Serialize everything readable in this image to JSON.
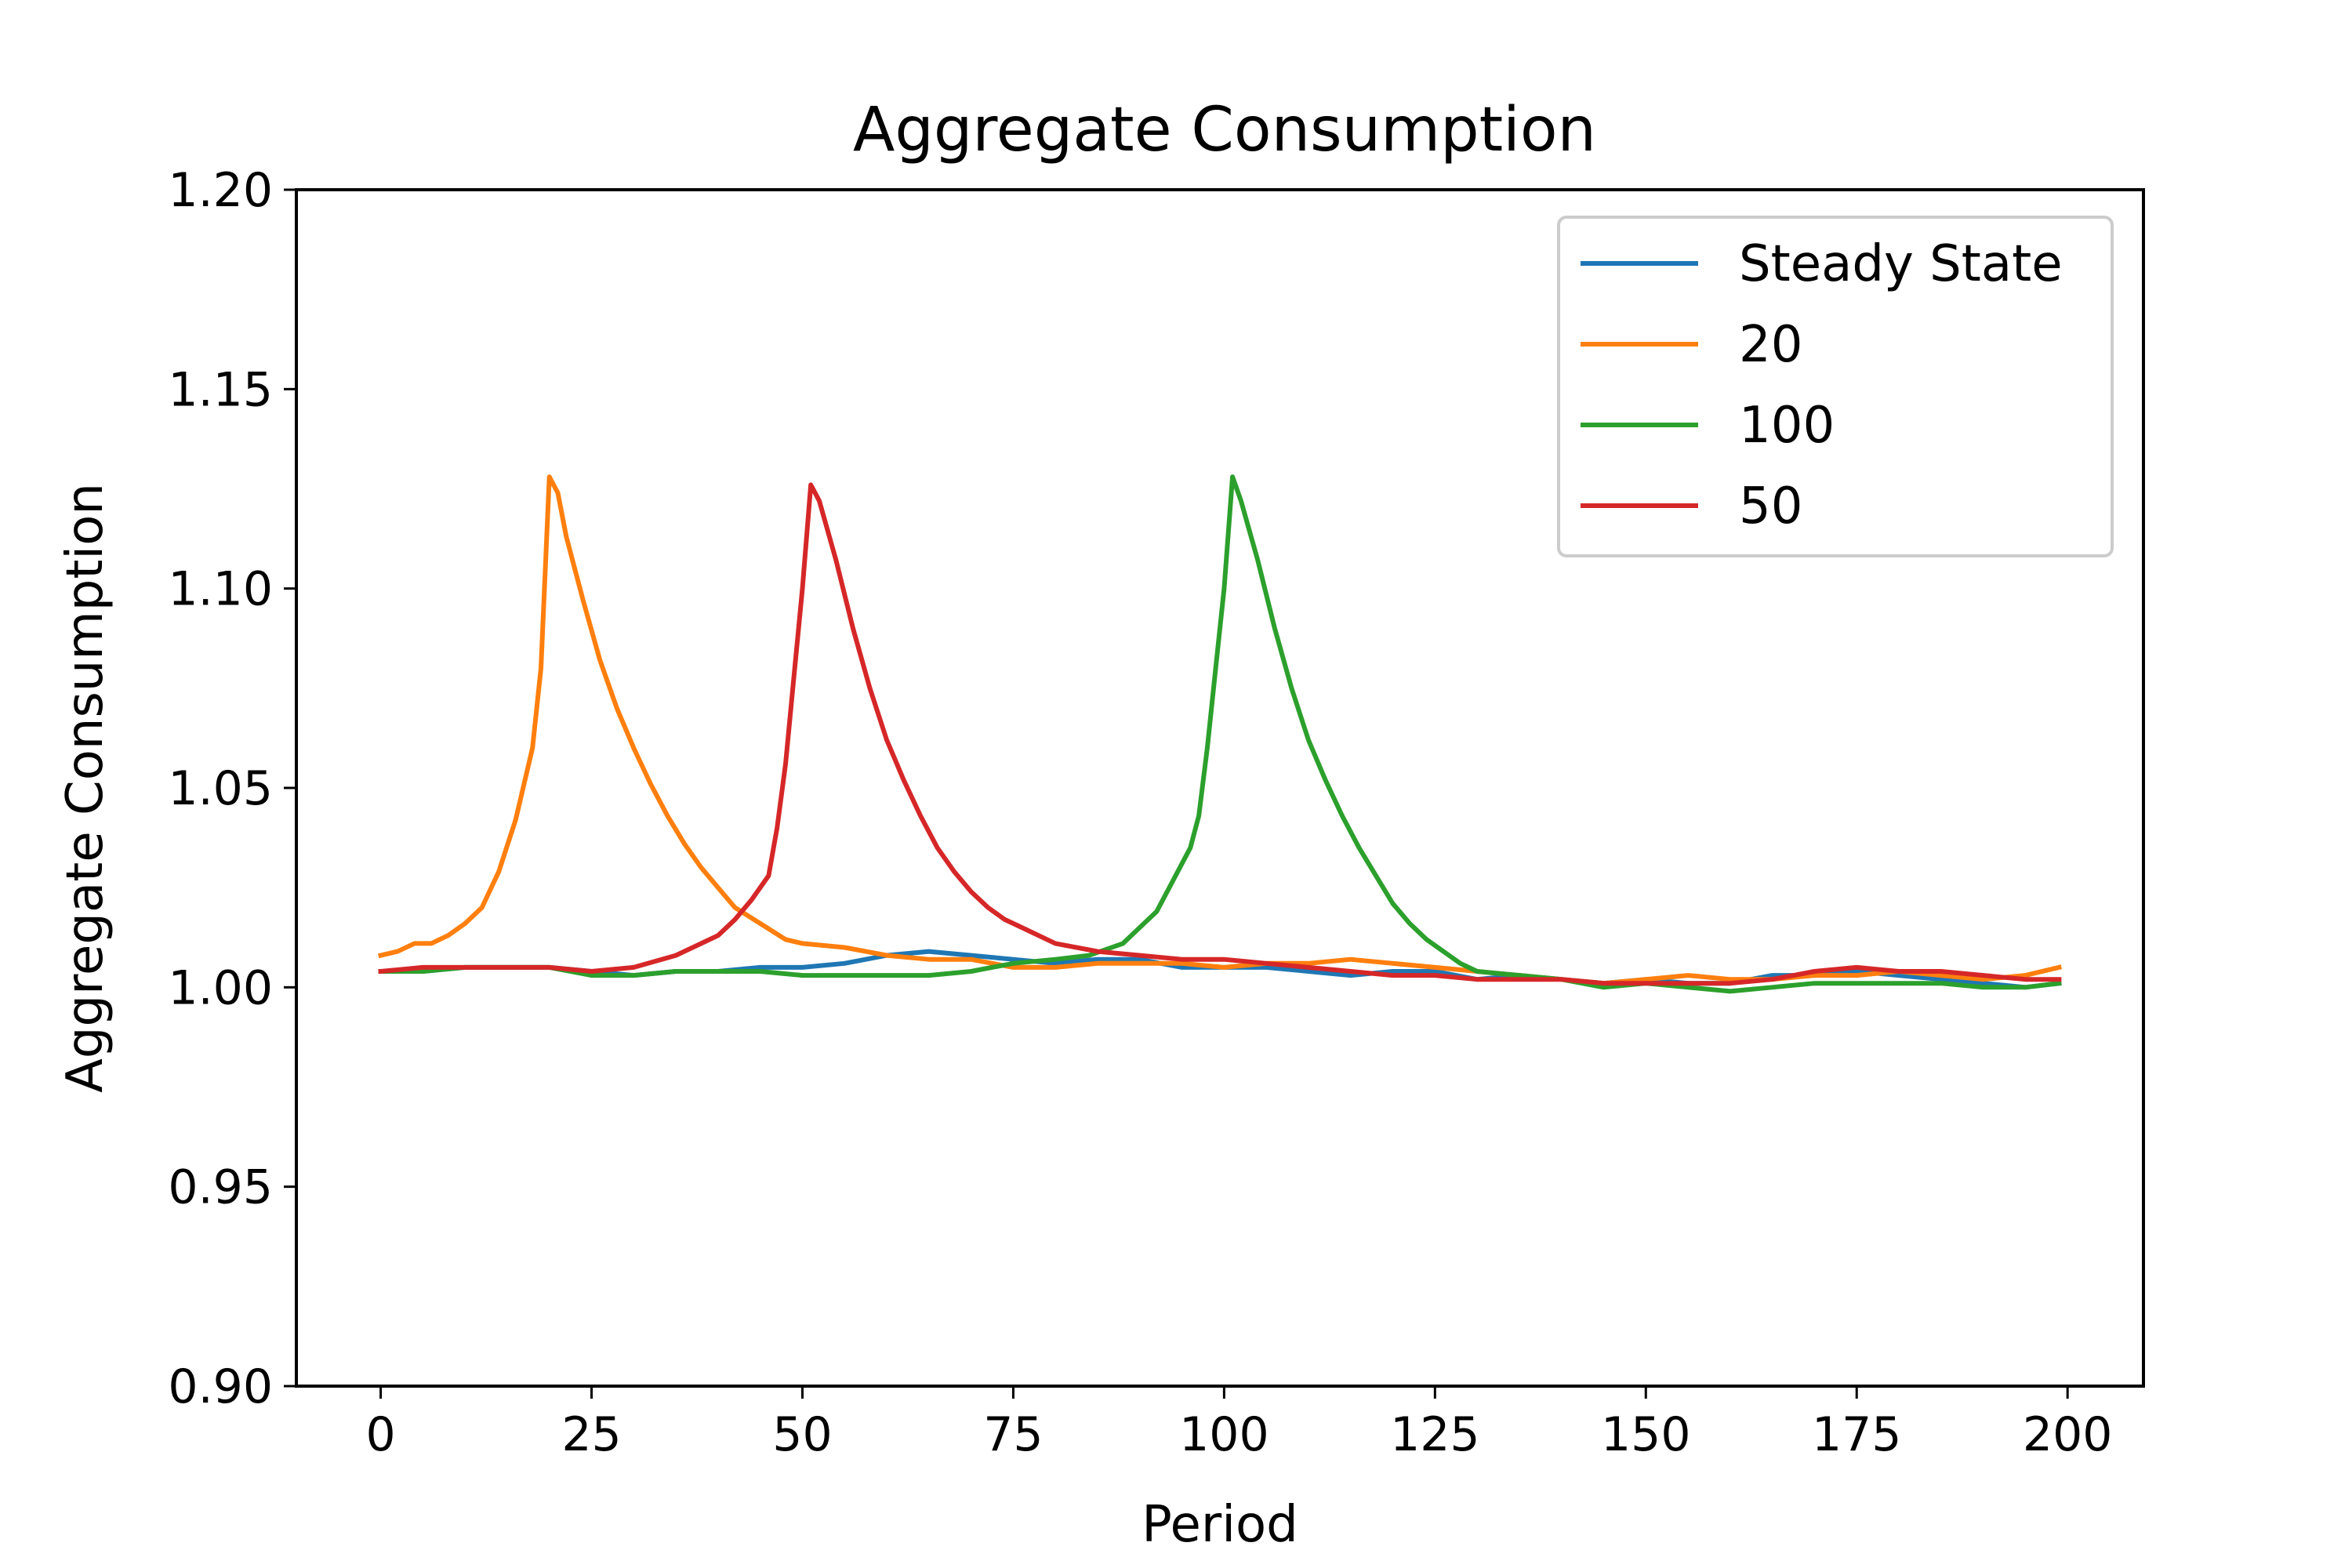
{
  "chart_data": {
    "type": "line",
    "title": "Aggregate Consumption",
    "xlabel": "Period",
    "ylabel": "Aggregate Consumption",
    "xlim": [
      -10,
      209
    ],
    "ylim": [
      0.9,
      1.2
    ],
    "xticks": [
      0,
      25,
      50,
      75,
      100,
      125,
      150,
      175,
      200
    ],
    "yticks": [
      0.9,
      0.95,
      1.0,
      1.05,
      1.1,
      1.15,
      1.2
    ],
    "ytick_labels": [
      "0.90",
      "0.95",
      "1.00",
      "1.05",
      "1.10",
      "1.15",
      "1.20"
    ],
    "legend_position": "top-right",
    "grid": false,
    "series": [
      {
        "name": "Steady State",
        "color": "#1f77b4",
        "x": [
          0,
          5,
          10,
          15,
          20,
          25,
          30,
          35,
          40,
          45,
          50,
          55,
          60,
          65,
          70,
          75,
          80,
          85,
          90,
          95,
          100,
          105,
          110,
          115,
          120,
          125,
          130,
          135,
          140,
          145,
          150,
          155,
          160,
          165,
          170,
          175,
          180,
          185,
          190,
          195,
          199
        ],
        "y": [
          1.004,
          1.004,
          1.005,
          1.005,
          1.005,
          1.004,
          1.003,
          1.004,
          1.004,
          1.005,
          1.005,
          1.006,
          1.008,
          1.009,
          1.008,
          1.007,
          1.006,
          1.007,
          1.007,
          1.005,
          1.005,
          1.005,
          1.004,
          1.003,
          1.004,
          1.004,
          1.002,
          1.003,
          1.002,
          1.001,
          1.002,
          1.001,
          1.001,
          1.003,
          1.003,
          1.004,
          1.003,
          1.002,
          1.001,
          1.0,
          1.001
        ]
      },
      {
        "name": "20",
        "color": "#ff7f0e",
        "x": [
          0,
          2,
          4,
          6,
          8,
          10,
          12,
          14,
          16,
          18,
          19,
          20,
          21,
          22,
          24,
          26,
          28,
          30,
          32,
          34,
          36,
          38,
          40,
          42,
          45,
          48,
          50,
          55,
          60,
          65,
          70,
          75,
          80,
          85,
          90,
          95,
          100,
          105,
          110,
          115,
          120,
          125,
          130,
          135,
          140,
          145,
          150,
          155,
          160,
          165,
          170,
          175,
          180,
          185,
          190,
          195,
          199
        ],
        "y": [
          1.008,
          1.009,
          1.011,
          1.011,
          1.013,
          1.016,
          1.02,
          1.029,
          1.042,
          1.06,
          1.08,
          1.128,
          1.124,
          1.113,
          1.097,
          1.082,
          1.07,
          1.06,
          1.051,
          1.043,
          1.036,
          1.03,
          1.025,
          1.02,
          1.016,
          1.012,
          1.011,
          1.01,
          1.008,
          1.007,
          1.007,
          1.005,
          1.005,
          1.006,
          1.006,
          1.006,
          1.005,
          1.006,
          1.006,
          1.007,
          1.006,
          1.005,
          1.004,
          1.003,
          1.002,
          1.001,
          1.002,
          1.003,
          1.002,
          1.002,
          1.003,
          1.003,
          1.004,
          1.003,
          1.002,
          1.003,
          1.005
        ]
      },
      {
        "name": "100",
        "color": "#2ca02c",
        "x": [
          0,
          5,
          10,
          15,
          20,
          25,
          30,
          35,
          40,
          45,
          50,
          55,
          60,
          65,
          70,
          75,
          80,
          84,
          88,
          90,
          92,
          94,
          96,
          97,
          98,
          99,
          100,
          101,
          102,
          104,
          106,
          108,
          110,
          112,
          114,
          116,
          118,
          120,
          122,
          124,
          126,
          128,
          130,
          135,
          140,
          145,
          150,
          155,
          160,
          165,
          170,
          175,
          180,
          185,
          190,
          195,
          199
        ],
        "y": [
          1.004,
          1.004,
          1.005,
          1.005,
          1.005,
          1.003,
          1.003,
          1.004,
          1.004,
          1.004,
          1.003,
          1.003,
          1.003,
          1.003,
          1.004,
          1.006,
          1.007,
          1.008,
          1.011,
          1.015,
          1.019,
          1.027,
          1.035,
          1.043,
          1.06,
          1.08,
          1.1,
          1.128,
          1.122,
          1.107,
          1.09,
          1.075,
          1.062,
          1.052,
          1.043,
          1.035,
          1.028,
          1.021,
          1.016,
          1.012,
          1.009,
          1.006,
          1.004,
          1.003,
          1.002,
          1.0,
          1.001,
          1.0,
          0.999,
          1.0,
          1.001,
          1.001,
          1.001,
          1.001,
          1.0,
          1.0,
          1.001
        ]
      },
      {
        "name": "50",
        "color": "#d62728",
        "x": [
          0,
          5,
          10,
          15,
          20,
          25,
          30,
          35,
          38,
          40,
          42,
          44,
          46,
          47,
          48,
          49,
          50,
          51,
          52,
          54,
          56,
          58,
          60,
          62,
          64,
          66,
          68,
          70,
          72,
          74,
          76,
          80,
          85,
          90,
          95,
          100,
          105,
          110,
          115,
          120,
          125,
          130,
          135,
          140,
          145,
          150,
          155,
          160,
          165,
          170,
          175,
          180,
          185,
          190,
          195,
          199
        ],
        "y": [
          1.004,
          1.005,
          1.005,
          1.005,
          1.005,
          1.004,
          1.005,
          1.008,
          1.011,
          1.013,
          1.017,
          1.022,
          1.028,
          1.04,
          1.056,
          1.078,
          1.1,
          1.126,
          1.122,
          1.107,
          1.09,
          1.075,
          1.062,
          1.052,
          1.043,
          1.035,
          1.029,
          1.024,
          1.02,
          1.017,
          1.015,
          1.011,
          1.009,
          1.008,
          1.007,
          1.007,
          1.006,
          1.005,
          1.004,
          1.003,
          1.003,
          1.002,
          1.002,
          1.002,
          1.001,
          1.001,
          1.001,
          1.001,
          1.002,
          1.004,
          1.005,
          1.004,
          1.004,
          1.003,
          1.002,
          1.002
        ]
      }
    ]
  }
}
